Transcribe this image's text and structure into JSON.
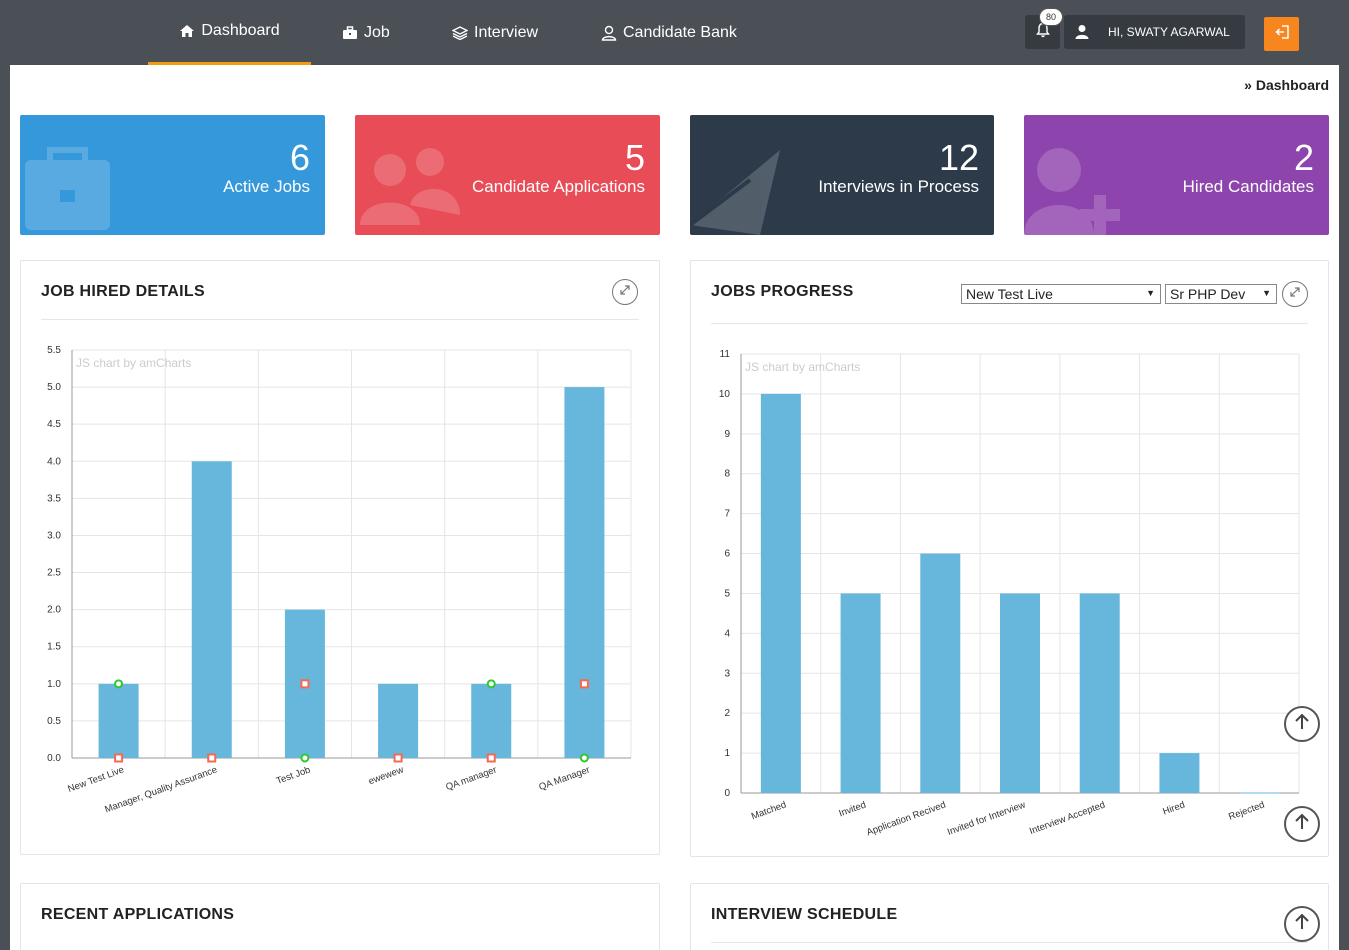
{
  "nav": {
    "items": [
      {
        "label": "Dashboard",
        "icon": "home-icon",
        "active": true
      },
      {
        "label": "Job",
        "icon": "briefcase-icon",
        "active": false
      },
      {
        "label": "Interview",
        "icon": "layers-icon",
        "active": false
      },
      {
        "label": "Candidate Bank",
        "icon": "user-outline-icon",
        "active": false
      }
    ],
    "notification_count": "80",
    "user_greeting": "HI, SWATY AGARWAL",
    "accent_color": "#f39c12",
    "logout_color": "#f7861f"
  },
  "breadcrumb": {
    "separator": "»",
    "current": "Dashboard"
  },
  "stats": [
    {
      "value": "6",
      "label": "Active Jobs",
      "color": "#3498db",
      "icon": "briefcase-icon"
    },
    {
      "value": "5",
      "label": "Candidate Applications",
      "color": "#e74c57",
      "icon": "users-icon"
    },
    {
      "value": "12",
      "label": "Interviews in Process",
      "color": "#2c3a4a",
      "icon": "paper-plane-icon"
    },
    {
      "value": "2",
      "label": "Hired Candidates",
      "color": "#8e44ad",
      "icon": "user-plus-icon"
    }
  ],
  "panels": {
    "job_hired": {
      "title": "JOB HIRED DETAILS"
    },
    "jobs_progress": {
      "title": "JOBS PROGRESS",
      "job_select": "New Test Live",
      "role_select": "Sr PHP Dev"
    },
    "recent_applications": {
      "title": "RECENT APPLICATIONS"
    },
    "interview_schedule": {
      "title": "INTERVIEW SCHEDULE"
    }
  },
  "chart_data": [
    {
      "type": "bar",
      "credit": "JS chart by amCharts",
      "categories": [
        "New Test Live",
        "Manager, Quality Assurance",
        "Test Job",
        "ewewew",
        "QA manager",
        "QA Manager"
      ],
      "values": [
        1,
        4,
        2,
        1,
        1,
        5
      ],
      "markers": {
        "green": [
          1,
          0,
          0,
          null,
          1,
          0
        ],
        "red": [
          0,
          0,
          1,
          0,
          0,
          1
        ]
      },
      "ylim": [
        0,
        5.5
      ],
      "yticks": [
        "0.0",
        "0.5",
        "1.0",
        "1.5",
        "2.0",
        "2.5",
        "3.0",
        "3.5",
        "4.0",
        "4.5",
        "5.0",
        "5.5"
      ],
      "bar_color": "#67b7dc",
      "grid": true
    },
    {
      "type": "bar",
      "credit": "JS chart by amCharts",
      "categories": [
        "Matched",
        "Invited",
        "Application Recived",
        "Invited for Interview",
        "Interview Accepted",
        "Hired",
        "Rejected"
      ],
      "values": [
        10,
        5,
        6,
        5,
        5,
        1,
        0
      ],
      "ylim": [
        0,
        11
      ],
      "yticks": [
        "0",
        "1",
        "2",
        "3",
        "4",
        "5",
        "6",
        "7",
        "8",
        "9",
        "10",
        "11"
      ],
      "bar_color": "#67b7dc",
      "grid": true
    }
  ]
}
